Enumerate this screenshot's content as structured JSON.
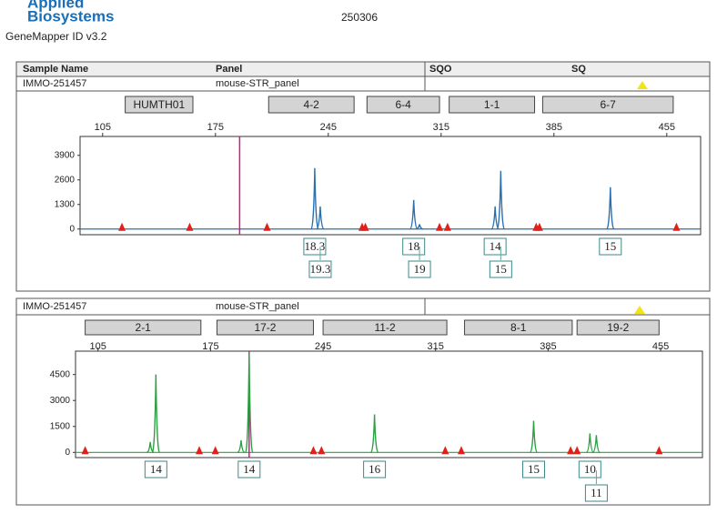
{
  "header": {
    "logo_top": "Applied",
    "logo_bottom": "Biosystems",
    "software": "GeneMapper ID v3.2",
    "run_id": "250306"
  },
  "table": {
    "columns": [
      "Sample Name",
      "Panel",
      "SQO",
      "SQ"
    ]
  },
  "panels": [
    {
      "sample": "IMMO-251457",
      "panel": "mouse-STR_panel",
      "color": "#2a6fb0",
      "xlim": [
        91,
        476
      ],
      "xticks": [
        105,
        175,
        245,
        315,
        385,
        455
      ],
      "ylim": [
        -300,
        4900
      ],
      "yticks": [
        0,
        1300,
        2600,
        3900
      ],
      "markers": [
        {
          "label": "HUMTH01",
          "range": [
            119,
            161
          ]
        },
        {
          "label": "4-2",
          "range": [
            208,
            261
          ]
        },
        {
          "label": "6-4",
          "range": [
            269,
            314
          ]
        },
        {
          "label": "1-1",
          "range": [
            320,
            373
          ]
        },
        {
          "label": "6-7",
          "range": [
            378,
            459
          ]
        }
      ],
      "peaks": [
        {
          "x": 236.6,
          "height": 3225
        },
        {
          "x": 240,
          "height": 1200
        },
        {
          "x": 298,
          "height": 1540
        },
        {
          "x": 301.6,
          "height": 250
        },
        {
          "x": 348.5,
          "height": 1200
        },
        {
          "x": 352,
          "height": 3080
        },
        {
          "x": 420,
          "height": 2215
        }
      ],
      "alleles": [
        {
          "label": "18.3",
          "x": 236.6
        },
        {
          "label": "19.3",
          "x": 240
        },
        {
          "label": "18",
          "x": 298
        },
        {
          "label": "19",
          "x": 301.6
        },
        {
          "label": "14",
          "x": 348.5
        },
        {
          "label": "15",
          "x": 352
        },
        {
          "label": "15",
          "x": 420
        }
      ],
      "size_standard": [
        117,
        159,
        207,
        266,
        268,
        314,
        319,
        374,
        376,
        461
      ],
      "size_standard_color": "#e0201b",
      "marker_line": 190
    },
    {
      "sample": "IMMO-251457",
      "panel": "mouse-STR_panel",
      "color": "#2ea043",
      "xlim": [
        91,
        481
      ],
      "xticks": [
        105,
        175,
        245,
        315,
        385,
        455
      ],
      "ylim": [
        -300,
        5850
      ],
      "yticks": [
        0,
        1500,
        3000,
        4500
      ],
      "markers": [
        {
          "label": "2-1",
          "range": [
            97,
            169
          ]
        },
        {
          "label": "17-2",
          "range": [
            179,
            239
          ]
        },
        {
          "label": "11-2",
          "range": [
            245,
            322
          ]
        },
        {
          "label": "8-1",
          "range": [
            333,
            400
          ]
        },
        {
          "label": "19-2",
          "range": [
            403,
            454
          ]
        }
      ],
      "peaks": [
        {
          "x": 137.5,
          "height": 600
        },
        {
          "x": 141,
          "height": 4500
        },
        {
          "x": 194,
          "height": 700
        },
        {
          "x": 199,
          "height": 5800
        },
        {
          "x": 277,
          "height": 2195
        },
        {
          "x": 376,
          "height": 1830
        },
        {
          "x": 411,
          "height": 1100
        },
        {
          "x": 415,
          "height": 1000
        }
      ],
      "alleles": [
        {
          "label": "14",
          "x": 141
        },
        {
          "label": "14",
          "x": 199
        },
        {
          "label": "16",
          "x": 277
        },
        {
          "label": "15",
          "x": 376
        },
        {
          "label": "10",
          "x": 411
        },
        {
          "label": "11",
          "x": 415
        }
      ],
      "size_standard": [
        97,
        168,
        178,
        239,
        244,
        321,
        331,
        399,
        403,
        454
      ],
      "size_standard_color": "#e0201b",
      "marker_line": 199
    }
  ]
}
